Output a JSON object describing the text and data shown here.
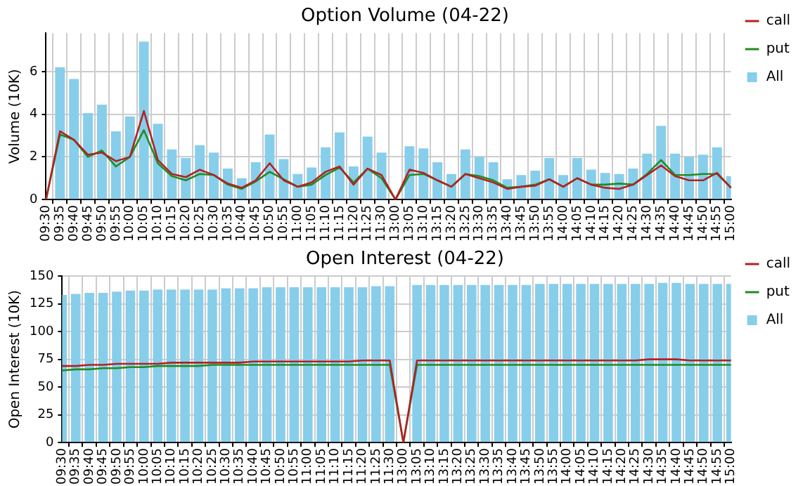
{
  "chart_data": [
    {
      "type": "bar",
      "title": "Option Volume (04-22)",
      "ylabel": "Volume (10K)",
      "categories": [
        "09:30",
        "09:35",
        "09:40",
        "09:45",
        "09:50",
        "09:55",
        "10:00",
        "10:05",
        "10:10",
        "10:15",
        "10:20",
        "10:25",
        "10:30",
        "10:35",
        "10:40",
        "10:45",
        "10:50",
        "10:55",
        "11:00",
        "11:05",
        "11:10",
        "11:15",
        "11:20",
        "11:25",
        "11:30",
        "13:00",
        "13:05",
        "13:10",
        "13:15",
        "13:20",
        "13:25",
        "13:30",
        "13:35",
        "13:40",
        "13:45",
        "13:50",
        "13:55",
        "14:00",
        "14:05",
        "14:10",
        "14:15",
        "14:20",
        "14:25",
        "14:30",
        "14:35",
        "14:40",
        "14:45",
        "14:50",
        "14:55",
        "15:00"
      ],
      "series": [
        {
          "name": "call",
          "type": "line",
          "color": "#b22222",
          "values": [
            0,
            3.2,
            2.8,
            2.1,
            2.2,
            1.8,
            2.0,
            4.15,
            1.85,
            1.2,
            1.05,
            1.4,
            1.15,
            0.75,
            0.55,
            0.9,
            1.7,
            0.9,
            0.6,
            0.8,
            1.3,
            1.55,
            0.7,
            1.45,
            1.15,
            0,
            1.4,
            1.25,
            0.9,
            0.6,
            1.2,
            1.0,
            0.8,
            0.5,
            0.6,
            0.65,
            0.95,
            0.6,
            1.0,
            0.7,
            0.55,
            0.5,
            0.7,
            1.15,
            1.6,
            1.1,
            0.9,
            0.9,
            1.25,
            0.55
          ]
        },
        {
          "name": "put",
          "type": "line",
          "color": "#228b22",
          "values": [
            0,
            3.05,
            2.8,
            2.0,
            2.3,
            1.55,
            2.0,
            3.25,
            1.7,
            1.1,
            0.9,
            1.2,
            1.15,
            0.7,
            0.5,
            0.85,
            1.3,
            0.95,
            0.6,
            0.7,
            1.15,
            1.5,
            0.8,
            1.45,
            1.0,
            0,
            1.15,
            1.2,
            0.9,
            0.6,
            1.2,
            1.1,
            0.9,
            0.55,
            0.6,
            0.7,
            0.95,
            0.6,
            1.0,
            0.7,
            0.7,
            0.75,
            0.7,
            1.2,
            1.85,
            1.15,
            1.15,
            1.2,
            1.2,
            0.55
          ]
        },
        {
          "name": "All",
          "color": "#87ceeb",
          "values": [
            0,
            6.2,
            5.65,
            4.05,
            4.45,
            3.2,
            3.9,
            7.4,
            3.55,
            2.35,
            1.95,
            2.55,
            2.2,
            1.45,
            1.0,
            1.75,
            3.05,
            1.9,
            1.2,
            1.5,
            2.45,
            3.15,
            1.55,
            2.95,
            2.2,
            0,
            2.5,
            2.4,
            1.75,
            1.2,
            2.35,
            2.0,
            1.75,
            0.95,
            1.15,
            1.35,
            1.95,
            1.15,
            1.95,
            1.4,
            1.25,
            1.2,
            1.45,
            2.15,
            3.45,
            2.15,
            2.0,
            2.1,
            2.45,
            1.1
          ]
        }
      ],
      "ylim": [
        0,
        7.8
      ],
      "yticks": [
        0,
        2,
        4,
        6
      ],
      "grid": true,
      "legend": "top right",
      "marker": "none"
    },
    {
      "type": "bar",
      "title": "Open Interest (04-22)",
      "ylabel": "Open Interest (10K)",
      "categories": [
        "09:30",
        "09:35",
        "09:40",
        "09:45",
        "09:50",
        "09:55",
        "10:00",
        "10:05",
        "10:10",
        "10:15",
        "10:20",
        "10:25",
        "10:30",
        "10:35",
        "10:40",
        "10:45",
        "10:50",
        "10:55",
        "11:00",
        "11:05",
        "11:10",
        "11:15",
        "11:20",
        "11:25",
        "11:30",
        "13:00",
        "13:05",
        "13:10",
        "13:15",
        "13:20",
        "13:25",
        "13:30",
        "13:35",
        "13:40",
        "13:45",
        "13:50",
        "13:55",
        "14:00",
        "14:05",
        "14:10",
        "14:15",
        "14:20",
        "14:25",
        "14:30",
        "14:35",
        "14:40",
        "14:45",
        "14:50",
        "14:55",
        "15:00"
      ],
      "series": [
        {
          "name": "call",
          "type": "line",
          "color": "#b22222",
          "values": [
            69,
            69,
            70,
            70,
            71,
            71,
            71,
            71,
            72,
            72,
            72,
            72,
            72,
            72,
            73,
            73,
            73,
            73,
            73,
            73,
            73,
            73,
            74,
            74,
            74,
            0,
            74,
            74,
            74,
            74,
            74,
            74,
            74,
            74,
            74,
            74,
            74,
            74,
            74,
            74,
            74,
            74,
            74,
            75,
            75,
            75,
            74,
            74,
            74,
            74
          ]
        },
        {
          "name": "put",
          "type": "line",
          "color": "#228b22",
          "values": [
            65,
            66,
            66,
            67,
            67,
            68,
            68,
            69,
            69,
            69,
            69,
            70,
            70,
            70,
            70,
            70,
            70,
            70,
            70,
            70,
            70,
            70,
            70,
            70,
            70,
            0,
            70,
            70,
            70,
            70,
            70,
            70,
            70,
            70,
            70,
            70,
            70,
            70,
            70,
            70,
            70,
            70,
            70,
            70,
            70,
            70,
            70,
            70,
            70,
            70
          ]
        },
        {
          "name": "All",
          "color": "#87ceeb",
          "values": [
            133,
            134,
            135,
            135,
            136,
            137,
            137,
            138,
            138,
            138,
            138,
            138,
            139,
            139,
            139,
            140,
            140,
            140,
            140,
            140,
            140,
            140,
            140,
            141,
            141,
            0,
            142,
            142,
            142,
            142,
            142,
            142,
            142,
            142,
            142,
            143,
            143,
            143,
            143,
            143,
            143,
            143,
            143,
            143,
            144,
            144,
            143,
            143,
            143,
            143
          ]
        }
      ],
      "ylim": [
        0,
        150
      ],
      "yticks": [
        0,
        25,
        50,
        75,
        100,
        125,
        150
      ],
      "grid": true,
      "legend": "top right",
      "marker": "none"
    }
  ]
}
